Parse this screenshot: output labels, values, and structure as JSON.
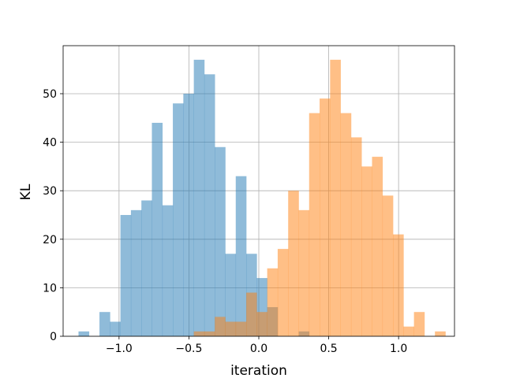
{
  "chart_data": {
    "type": "histogram",
    "title": "",
    "xlabel": "iteration",
    "ylabel": "KL",
    "xlim": [
      -1.4,
      1.4
    ],
    "ylim": [
      0,
      59.9
    ],
    "grid": true,
    "legend": "none",
    "xticks": [
      -1.0,
      -0.5,
      0.0,
      0.5,
      1.0
    ],
    "xtick_labels": [
      "−1.0",
      "−0.5",
      "0.0",
      "0.5",
      "1.0"
    ],
    "yticks": [
      0,
      10,
      20,
      30,
      40,
      50
    ],
    "ytick_labels": [
      "0",
      "10",
      "20",
      "30",
      "40",
      "50"
    ],
    "series": [
      {
        "color": "#1f77b4",
        "alpha": 0.5,
        "bin_edges": [
          -1.29,
          -1.215,
          -1.14,
          -1.065,
          -0.99,
          -0.915,
          -0.84,
          -0.765,
          -0.69,
          -0.615,
          -0.54,
          -0.465,
          -0.39,
          -0.315,
          -0.24,
          -0.165,
          -0.09,
          -0.015,
          0.06,
          0.135,
          0.21,
          0.285,
          0.36,
          0.435
        ],
        "counts": [
          1,
          0,
          5,
          3,
          25,
          26,
          28,
          44,
          27,
          48,
          50,
          57,
          54,
          39,
          17,
          33,
          17,
          12,
          6,
          0,
          0,
          1,
          0
        ]
      },
      {
        "color": "#ff7f0e",
        "alpha": 0.5,
        "bin_edges": [
          -0.465,
          -0.39,
          -0.315,
          -0.24,
          -0.165,
          -0.09,
          -0.015,
          0.06,
          0.135,
          0.21,
          0.285,
          0.36,
          0.435,
          0.51,
          0.585,
          0.66,
          0.735,
          0.81,
          0.885,
          0.96,
          1.035,
          1.11,
          1.185,
          1.26,
          1.335
        ],
        "counts": [
          1,
          1,
          4,
          3,
          3,
          9,
          5,
          14,
          18,
          30,
          26,
          46,
          49,
          57,
          46,
          41,
          35,
          37,
          29,
          21,
          2,
          5,
          0,
          1
        ]
      }
    ]
  }
}
